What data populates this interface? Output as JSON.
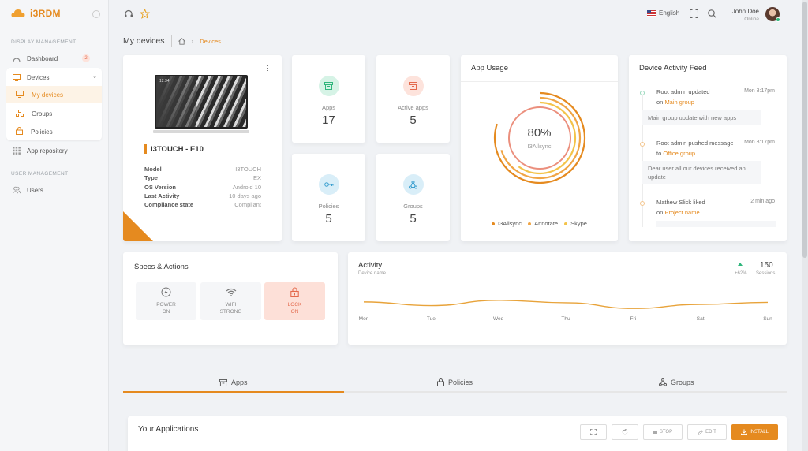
{
  "app": {
    "name": "i3RDM"
  },
  "sidebar": {
    "section1": "DISPLAY MANAGEMENT",
    "dashboard": "Dashboard",
    "dashboard_badge": "2",
    "devices": "Devices",
    "my_devices": "My devices",
    "groups": "Groups",
    "policies": "Policies",
    "app_repository": "App repository",
    "section2": "USER MANAGEMENT",
    "users": "Users"
  },
  "topbar": {
    "language": "English",
    "user_name": "John Doe",
    "user_status": "Online"
  },
  "breadcrumb": {
    "title": "My devices",
    "current": "Devices"
  },
  "device": {
    "name": "I3TOUCH - E10",
    "screen_time": "12:34",
    "specs": [
      [
        "Model",
        "I3TOUCH"
      ],
      [
        "Type",
        "EX"
      ],
      [
        "OS Version",
        "Android 10"
      ],
      [
        "Last Activity",
        "10 days ago"
      ],
      [
        "Compliance state",
        "Compliant"
      ]
    ]
  },
  "stats": {
    "apps_label": "Apps",
    "apps_value": "17",
    "active_label": "Active apps",
    "active_value": "5",
    "policies_label": "Policies",
    "policies_value": "5",
    "groups_label": "Groups",
    "groups_value": "5"
  },
  "app_usage": {
    "title": "App Usage",
    "percent": "80%",
    "center_label": "I3Allsync",
    "legend": [
      {
        "name": "I3Allsync",
        "color": "#e58a1f",
        "value": 0.8
      },
      {
        "name": "Annotate",
        "color": "#f0a545",
        "value": 0.7
      },
      {
        "name": "Skype",
        "color": "#f3c34a",
        "value": 0.6
      }
    ]
  },
  "feed": {
    "title": "Device Activity Feed",
    "items": [
      {
        "text": "Root admin updated",
        "on": "on",
        "link": "Main group",
        "time": "Mon 8:17pm",
        "msg": "Main group update with new apps"
      },
      {
        "text": "Root admin pushed message",
        "on": "to",
        "link": "Office group",
        "time": "Mon 8:17pm",
        "msg": "Dear user all our devices received an update"
      },
      {
        "text": "Mathew Slick liked",
        "on": "on",
        "link": "Project name",
        "time": "2 min ago"
      }
    ]
  },
  "specs_actions": {
    "title": "Specs & Actions",
    "tiles": [
      {
        "label": "POWER",
        "state": "ON"
      },
      {
        "label": "WIFI",
        "state": "STRONG"
      },
      {
        "label": "LOCK",
        "state": "ON"
      }
    ]
  },
  "activity": {
    "title": "Activity",
    "subtitle": "Device name",
    "change": "+62%",
    "sessions_value": "150",
    "sessions_label": "Sessions"
  },
  "chart_data": {
    "type": "line",
    "categories": [
      "Mon",
      "Tue",
      "Wed",
      "Thu",
      "Fri",
      "Sat",
      "Sun"
    ],
    "series": [
      {
        "values": [
          0.56,
          0.47,
          0.6,
          0.54,
          0.4,
          0.5,
          0.55
        ]
      }
    ],
    "color": "#e8a33a",
    "grid": false
  },
  "tabs": [
    {
      "label": "Apps"
    },
    {
      "label": "Policies"
    },
    {
      "label": "Groups"
    }
  ],
  "applications": {
    "title": "Your Applications",
    "stop": "STOP",
    "edit": "EDIT",
    "install": "INSTALL"
  },
  "colors": {
    "accent": "#e58a1f",
    "green": "#2fb67c",
    "red": "#e36a4d",
    "blue": "#3a9fcf"
  }
}
